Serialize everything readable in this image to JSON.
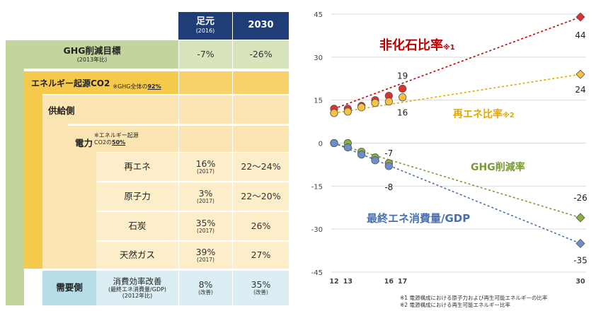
{
  "table": {
    "headers": {
      "current_main": "足元",
      "current_sub": "(2016)",
      "target": "2030"
    },
    "ghg": {
      "label": "GHG削減目標",
      "sub": "(2013年比)",
      "current": "-7%",
      "target": "-26%"
    },
    "energy_co2": {
      "label": "エネルギー起源CO2",
      "note_prefix": "※GHG全体の",
      "note_pct": "92%"
    },
    "supply": {
      "label": "供給側"
    },
    "power": {
      "label": "電力",
      "note1": "※エネルギー起源",
      "note2_prefix": "CO2の",
      "note2_pct": "50%"
    },
    "rows": [
      {
        "label": "再エネ",
        "current": "16%",
        "current_sub": "(2017)",
        "target": "22～24%"
      },
      {
        "label": "原子力",
        "current": "3%",
        "current_sub": "(2017)",
        "target": "22～20%"
      },
      {
        "label": "石炭",
        "current": "35%",
        "current_sub": "(2017)",
        "target": "26%"
      },
      {
        "label": "天然ガス",
        "current": "39%",
        "current_sub": "(2017)",
        "target": "27%"
      }
    ],
    "demand": {
      "label": "需要側",
      "item": "消費効率改善",
      "item_sub1": "(最終エネ消費量/GDP)",
      "item_sub2": "(2012年比)",
      "current": "8%",
      "current_sub": "(改善)",
      "target": "35%",
      "target_sub": "(改善)"
    }
  },
  "chart_data": {
    "type": "line",
    "ylim": [
      -45,
      45
    ],
    "yticks": [
      45,
      30,
      15,
      0,
      -15,
      -30,
      -45
    ],
    "xticks": [
      {
        "x": 12,
        "label": "12"
      },
      {
        "x": 13,
        "label": "13"
      },
      {
        "x": 16,
        "label": "16"
      },
      {
        "x": 17,
        "label": "17"
      },
      {
        "x": 30,
        "label": "30"
      }
    ],
    "series": [
      {
        "name": "非化石比率",
        "name_note": "※1",
        "color": "#c00000",
        "marker_fill": "#e03030",
        "points": [
          [
            12,
            12
          ],
          [
            13,
            12
          ],
          [
            14,
            13
          ],
          [
            15,
            15
          ],
          [
            16,
            16.5
          ],
          [
            17,
            19
          ]
        ],
        "target": [
          30,
          44
        ],
        "label_start": "",
        "label_end": "19",
        "label_target": "44"
      },
      {
        "name": "再エネ比率",
        "name_note": "※2",
        "color": "#e6a700",
        "marker_fill": "#f6c242",
        "points": [
          [
            12,
            10.5
          ],
          [
            13,
            11
          ],
          [
            14,
            12.5
          ],
          [
            15,
            14
          ],
          [
            16,
            14.5
          ],
          [
            17,
            16
          ]
        ],
        "target": [
          30,
          24
        ],
        "label_start": "",
        "label_end": "16",
        "label_target": "24"
      },
      {
        "name": "GHG削減率",
        "name_note": "",
        "color": "#7a9a35",
        "marker_fill": "#8fb03e",
        "points": [
          [
            12,
            0
          ],
          [
            13,
            0
          ],
          [
            14,
            -3
          ],
          [
            15,
            -5
          ],
          [
            16,
            -7
          ]
        ],
        "target": [
          30,
          -26
        ],
        "label_start": "",
        "label_end": "-7",
        "label_target": "-26"
      },
      {
        "name": "最終エネ消費量/GDP",
        "name_note": "",
        "color": "#4a6fb0",
        "marker_fill": "#6d8fc8",
        "points": [
          [
            12,
            0
          ],
          [
            13,
            -1.5
          ],
          [
            14,
            -4
          ],
          [
            15,
            -6
          ],
          [
            16,
            -8
          ]
        ],
        "target": [
          30,
          -35
        ],
        "label_start": "",
        "label_end": "-8",
        "label_target": "-35"
      }
    ],
    "notes": [
      "※1 電源構成における原子力および再生可能エネルギーの比率",
      "※2 電源構成における再生可能エネルギー比率"
    ]
  }
}
